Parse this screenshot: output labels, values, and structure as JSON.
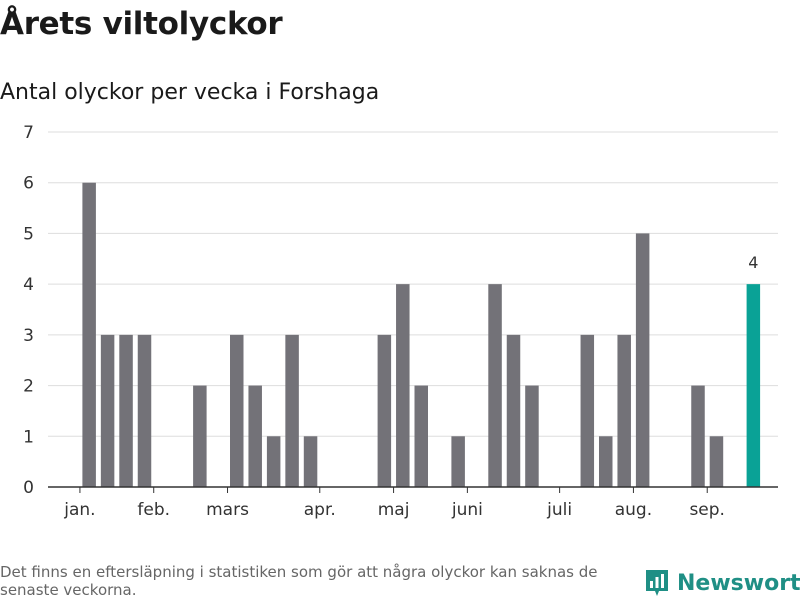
{
  "title": "Årets viltolyckor",
  "subtitle": "Antal olyckor per vecka i Forshaga",
  "footnote": "Det finns en eftersläpning i statistiken som gör att några olyckor kan saknas de senaste veckorna.",
  "brand": {
    "name": "Newsworthy",
    "icon": "newsworthy-logo-icon",
    "color": "#1f8f85"
  },
  "colors": {
    "bar": "#737278",
    "highlight": "#0aa296",
    "grid": "#dddddd",
    "axis": "#333333"
  },
  "chart_data": {
    "type": "bar",
    "title": "Antal olyckor per vecka i Forshaga",
    "xlabel": "",
    "ylabel": "",
    "ylim": [
      0,
      7
    ],
    "yticks": [
      0,
      1,
      2,
      3,
      4,
      5,
      6,
      7
    ],
    "grid": true,
    "weeks": [
      1,
      2,
      3,
      4,
      5,
      6,
      7,
      8,
      9,
      10,
      11,
      12,
      13,
      14,
      15,
      16,
      17,
      18,
      19,
      20,
      21,
      22,
      23,
      24,
      25,
      26,
      27,
      28,
      29,
      30,
      31,
      32,
      33,
      34,
      35,
      36,
      37,
      38
    ],
    "values": [
      0,
      6,
      3,
      3,
      3,
      0,
      0,
      2,
      0,
      3,
      2,
      1,
      3,
      1,
      0,
      0,
      0,
      3,
      4,
      2,
      0,
      1,
      0,
      4,
      3,
      2,
      0,
      0,
      3,
      1,
      3,
      5,
      0,
      0,
      2,
      1,
      0,
      4
    ],
    "highlight_index": 37,
    "data_labels": [
      {
        "index": 37,
        "text": "4"
      }
    ],
    "month_labels": [
      {
        "label": "jan.",
        "week": 1.5
      },
      {
        "label": "feb.",
        "week": 5.5
      },
      {
        "label": "mars",
        "week": 9.5
      },
      {
        "label": "apr.",
        "week": 14.5
      },
      {
        "label": "maj",
        "week": 18.5
      },
      {
        "label": "juni",
        "week": 22.5
      },
      {
        "label": "juli",
        "week": 27.5
      },
      {
        "label": "aug.",
        "week": 31.5
      },
      {
        "label": "sep.",
        "week": 35.5
      }
    ]
  }
}
